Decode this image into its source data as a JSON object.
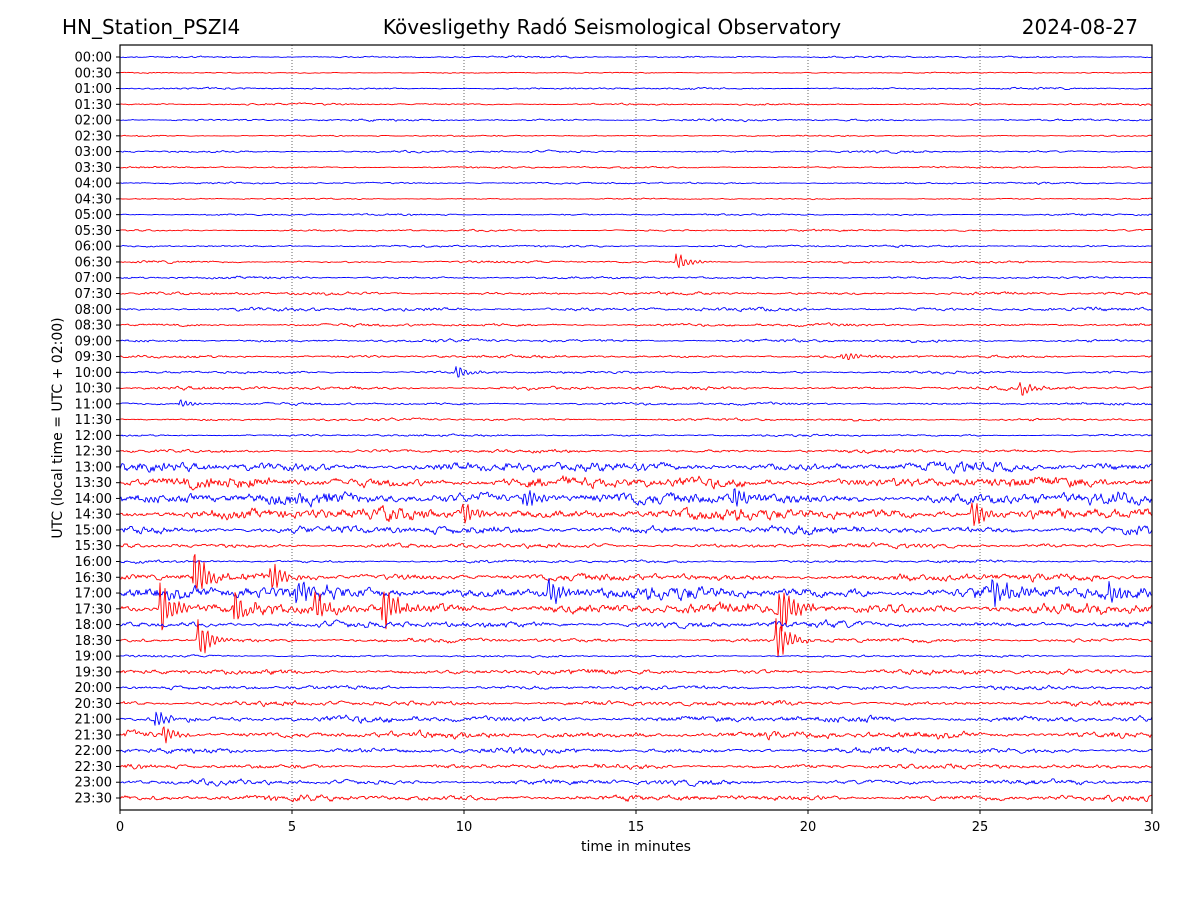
{
  "header": {
    "station": "HN_Station_PSZI4",
    "observatory": "Kövesligethy Radó Seismological Observatory",
    "date": "2024-08-27"
  },
  "chart_data": {
    "type": "line",
    "title": "Kövesligethy Radó Seismological Observatory",
    "xlabel": "time in minutes",
    "ylabel": "UTC (local time = UTC + 02:00)",
    "xlim": [
      0,
      30
    ],
    "x_ticks": [
      "0",
      "5",
      "10",
      "15",
      "20",
      "25",
      "30"
    ],
    "x_tick_values": [
      0,
      5,
      10,
      15,
      20,
      25,
      30
    ],
    "grid": "vertical dotted at x ticks",
    "colors": [
      "#0000ff",
      "#ff0000"
    ],
    "rows": [
      "00:00",
      "00:30",
      "01:00",
      "01:30",
      "02:00",
      "02:30",
      "03:00",
      "03:30",
      "04:00",
      "04:30",
      "05:00",
      "05:30",
      "06:00",
      "06:30",
      "07:00",
      "07:30",
      "08:00",
      "08:30",
      "09:00",
      "09:30",
      "10:00",
      "10:30",
      "11:00",
      "11:30",
      "12:00",
      "12:30",
      "13:00",
      "13:30",
      "14:00",
      "14:30",
      "15:00",
      "15:30",
      "16:00",
      "16:30",
      "17:00",
      "17:30",
      "18:00",
      "18:30",
      "19:00",
      "19:30",
      "20:00",
      "20:30",
      "21:00",
      "21:30",
      "22:00",
      "22:30",
      "23:00",
      "23:30"
    ],
    "relative_noise_level": [
      1,
      0.6,
      1,
      1,
      1.2,
      0.8,
      1.2,
      1,
      1,
      0.7,
      1,
      1,
      1.2,
      1.2,
      1.3,
      1.6,
      2,
      1.6,
      1.6,
      1.6,
      1.4,
      1.8,
      1.4,
      1.4,
      1.2,
      1.8,
      5,
      6,
      6.5,
      6.5,
      4.5,
      2.5,
      1.6,
      4,
      7,
      6,
      3.5,
      2.2,
      1.2,
      2.8,
      2.2,
      2.6,
      3.5,
      3.8,
      3,
      2.6,
      2.8,
      3.2
    ],
    "events": [
      [
        13,
        16.2,
        10
      ],
      [
        21,
        26.2,
        8
      ],
      [
        19,
        21,
        5
      ],
      [
        20,
        9.8,
        9
      ],
      [
        22,
        1.8,
        5
      ],
      [
        35,
        1.2,
        30
      ],
      [
        35,
        3.4,
        22
      ],
      [
        35,
        5.7,
        20
      ],
      [
        35,
        7.7,
        25
      ],
      [
        35,
        19.2,
        35
      ],
      [
        34,
        12.5,
        18
      ],
      [
        34,
        5.1,
        14
      ],
      [
        34,
        25.4,
        18
      ],
      [
        34,
        28.8,
        16
      ],
      [
        29,
        10,
        14
      ],
      [
        29,
        24.8,
        16
      ],
      [
        28,
        17.9,
        14
      ],
      [
        28,
        11.8,
        12
      ],
      [
        33,
        2.2,
        28
      ],
      [
        33,
        4.4,
        20
      ],
      [
        37,
        2.3,
        22
      ],
      [
        37,
        19.1,
        26
      ],
      [
        42,
        1.1,
        10
      ],
      [
        43,
        1.3,
        10
      ]
    ]
  }
}
